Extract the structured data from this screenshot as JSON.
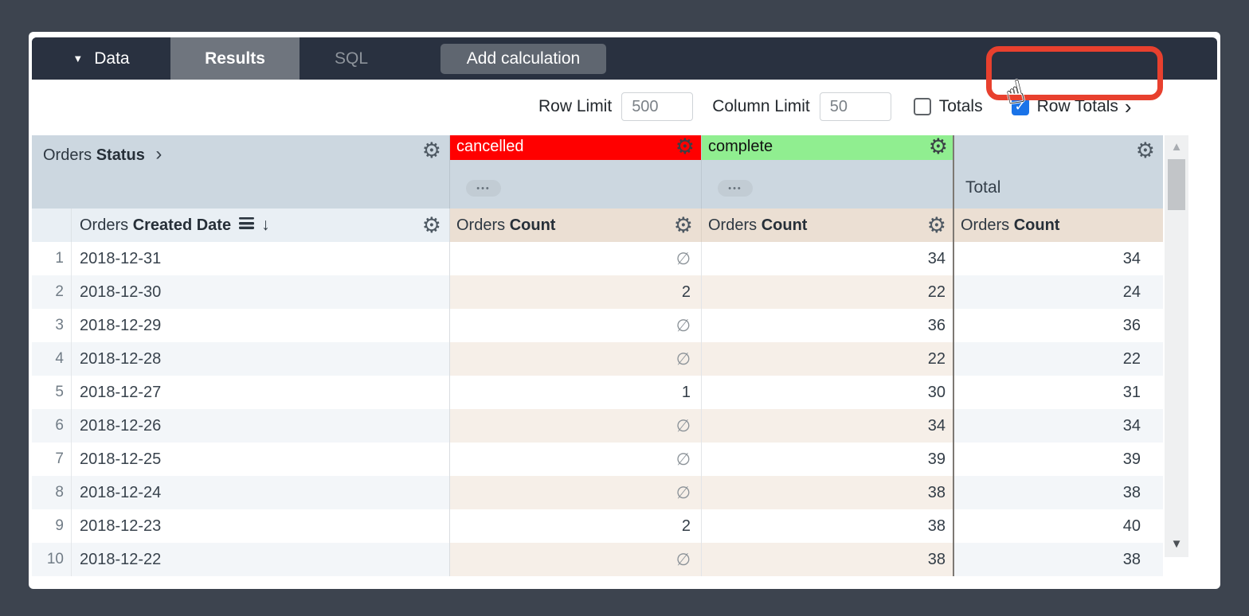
{
  "toolbar": {
    "data_label": "Data",
    "results_tab": "Results",
    "sql_tab": "SQL",
    "add_calculation": "Add calculation"
  },
  "controls": {
    "row_limit_label": "Row Limit",
    "row_limit_value": "500",
    "column_limit_label": "Column Limit",
    "column_limit_value": "50",
    "totals_label": "Totals",
    "totals_checked": false,
    "row_totals_label": "Row Totals",
    "row_totals_checked": true
  },
  "table": {
    "pivot_dimension": {
      "regular": "Orders",
      "bold": "Status"
    },
    "row_dimension": {
      "regular": "Orders",
      "bold": "Created Date"
    },
    "measure_header": {
      "regular": "Orders",
      "bold": "Count"
    },
    "total_label": "Total",
    "null_symbol": "∅",
    "pivot_values": [
      {
        "label": "cancelled",
        "bg": "#ff0000",
        "color": "#ffffff"
      },
      {
        "label": "complete",
        "bg": "#90ee90",
        "color": "#111111"
      }
    ],
    "rows": [
      {
        "num": "1",
        "date": "2018-12-31",
        "cancelled": "∅",
        "complete": "34",
        "total": "34"
      },
      {
        "num": "2",
        "date": "2018-12-30",
        "cancelled": "2",
        "complete": "22",
        "total": "24"
      },
      {
        "num": "3",
        "date": "2018-12-29",
        "cancelled": "∅",
        "complete": "36",
        "total": "36"
      },
      {
        "num": "4",
        "date": "2018-12-28",
        "cancelled": "∅",
        "complete": "22",
        "total": "22"
      },
      {
        "num": "5",
        "date": "2018-12-27",
        "cancelled": "1",
        "complete": "30",
        "total": "31"
      },
      {
        "num": "6",
        "date": "2018-12-26",
        "cancelled": "∅",
        "complete": "34",
        "total": "34"
      },
      {
        "num": "7",
        "date": "2018-12-25",
        "cancelled": "∅",
        "complete": "39",
        "total": "39"
      },
      {
        "num": "8",
        "date": "2018-12-24",
        "cancelled": "∅",
        "complete": "38",
        "total": "38"
      },
      {
        "num": "9",
        "date": "2018-12-23",
        "cancelled": "2",
        "complete": "38",
        "total": "40"
      },
      {
        "num": "10",
        "date": "2018-12-22",
        "cancelled": "∅",
        "complete": "38",
        "total": "38"
      }
    ]
  },
  "icons": {
    "gear": "⚙",
    "caret_down": "▼",
    "chevron_right": "›",
    "sort_desc": "↓",
    "ellipsis": "•••",
    "cursor_hand": "☝",
    "scroll_up": "▲",
    "scroll_down": "▼"
  },
  "colors": {
    "accent_blue": "#1a73e8",
    "annotation_red": "#e8402e",
    "header_blue": "#ccd7e0",
    "header_beige": "#ebdfd3",
    "cancelled_bg": "#ff0000",
    "complete_bg": "#90ee90"
  }
}
